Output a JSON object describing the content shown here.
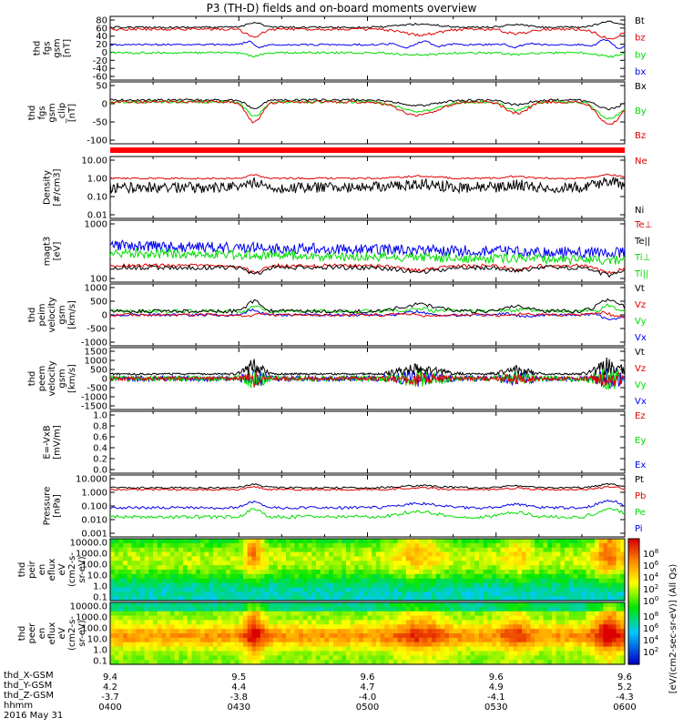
{
  "title": "P3 (TH-D) fields and on-board moments overview",
  "colors": {
    "black": "#000000",
    "red": "#e00000",
    "green": "#00dd00",
    "blue": "#0000ee"
  },
  "chart_data": {
    "type": "line",
    "title": "P3 (TH-D) fields and on-board moments overview",
    "date_label": "2016 May 31",
    "x_range": [
      "04:00",
      "06:00"
    ],
    "panels": [
      {
        "id": "fgs",
        "ylabel": [
          "thd",
          "fgs",
          "gsm",
          "[nT]"
        ],
        "yticks": [
          "80",
          "60",
          "40",
          "20",
          "0",
          "-20",
          "-40",
          "-60"
        ],
        "legend": [
          {
            "text": "Bt",
            "color": "black"
          },
          {
            "text": "bz",
            "color": "red"
          },
          {
            "text": "by",
            "color": "green"
          },
          {
            "text": "bx",
            "color": "blue"
          }
        ]
      },
      {
        "id": "fgs_clock",
        "ylabel": [
          "thd",
          "fgs",
          "gsm",
          "_clip",
          "[nT]"
        ],
        "yticks": [
          "50",
          "0",
          "-50",
          "-100"
        ],
        "legend": [
          {
            "text": "Bx",
            "color": "black"
          },
          {
            "text": "By",
            "color": "green"
          },
          {
            "text": "Bz",
            "color": "red"
          }
        ]
      },
      {
        "id": "density",
        "ylabel": [
          "Density",
          "[#/cm3]"
        ],
        "yticks": [
          "10.00",
          "1.00",
          "0.10",
          "0.01"
        ],
        "legend": [
          {
            "text": "Ne",
            "color": "red"
          },
          {
            "text": "Ni",
            "color": "black"
          }
        ]
      },
      {
        "id": "temp",
        "ylabel": [
          "magt3",
          "[eV]"
        ],
        "yticks": [
          "1000",
          "100"
        ],
        "legend": [
          {
            "text": "Te⊥",
            "color": "red"
          },
          {
            "text": "Te||",
            "color": "black"
          },
          {
            "text": "Ti⊥",
            "color": "green"
          },
          {
            "text": "Ti||",
            "color": "green"
          }
        ]
      },
      {
        "id": "ion_vel",
        "ylabel": [
          "thd",
          "peim",
          "velocity",
          "gsm",
          "[km/s]"
        ],
        "yticks": [
          "1000",
          "500",
          "0",
          "-500",
          "-1000"
        ],
        "legend": [
          {
            "text": "Vt",
            "color": "black"
          },
          {
            "text": "Vz",
            "color": "red"
          },
          {
            "text": "Vy",
            "color": "green"
          },
          {
            "text": "Vx",
            "color": "blue"
          }
        ]
      },
      {
        "id": "ele_vel",
        "ylabel": [
          "thd",
          "peem",
          "velocity",
          "gsm",
          "[km/s]"
        ],
        "yticks": [
          "1500",
          "1000",
          "500",
          "0",
          "-500",
          "-1000",
          "-1500"
        ],
        "legend": [
          {
            "text": "Vt",
            "color": "black"
          },
          {
            "text": "Vz",
            "color": "red"
          },
          {
            "text": "Vy",
            "color": "green"
          },
          {
            "text": "Vx",
            "color": "blue"
          }
        ]
      },
      {
        "id": "efield",
        "ylabel": [
          "E=-VxB",
          "[mV/m]"
        ],
        "yticks": [
          "1.0",
          "0.8",
          "0.6",
          "0.4",
          "0.2",
          "0.0"
        ],
        "legend": [
          {
            "text": "Ez",
            "color": "red"
          },
          {
            "text": "Ey",
            "color": "green"
          },
          {
            "text": "Ex",
            "color": "blue"
          }
        ]
      },
      {
        "id": "pressure",
        "ylabel": [
          "Pressure",
          "[nPa]"
        ],
        "yticks": [
          "10.000",
          "1.000",
          "0.100",
          "0.010",
          "0.001"
        ],
        "legend": [
          {
            "text": "Pt",
            "color": "black"
          },
          {
            "text": "Pb",
            "color": "red"
          },
          {
            "text": "Pe",
            "color": "green"
          },
          {
            "text": "Pi",
            "color": "blue"
          }
        ]
      },
      {
        "id": "ion_spec",
        "ylabel": [
          "thd",
          "peir",
          "en",
          "eflux",
          "eV",
          "(cm2-s-",
          "sr-eV)"
        ],
        "yticks": [
          "10000.0",
          "1000.0",
          "100.0",
          "10.0",
          "1.0",
          "0.1"
        ]
      },
      {
        "id": "ele_spec",
        "ylabel": [
          "thd",
          "peer",
          "en",
          "eflux",
          "eV",
          "(cm2-s-",
          "sr-eV)"
        ],
        "yticks": [
          "10000.0",
          "1000.0",
          "100.0",
          "10.0",
          "1.0",
          "0.1"
        ]
      }
    ],
    "colorbar": {
      "label": "[eV/(cm2-sec-sr-eV)] (All Qs)",
      "ticks_top": [
        "10^8",
        "10^6",
        "10^4",
        "10^2",
        "10^0"
      ],
      "ticks_bottom": [
        "10^8",
        "10^6",
        "10^4",
        "10^2"
      ]
    },
    "x_ticks": [
      {
        "hhmm": "0400",
        "x": "9.4",
        "y": "4.2",
        "z": "-3.7"
      },
      {
        "hhmm": "0430",
        "x": "9.5",
        "y": "4.4",
        "z": "-3.8"
      },
      {
        "hhmm": "0500",
        "x": "9.6",
        "y": "4.7",
        "z": "-4.0"
      },
      {
        "hhmm": "0530",
        "x": "9.6",
        "y": "4.9",
        "z": "-4.1"
      },
      {
        "hhmm": "0600",
        "x": "9.6",
        "y": "5.2",
        "z": "-4.3"
      }
    ],
    "x_labels": [
      "thd_X-GSM",
      "thd_Y-GSM",
      "thd_Z-GSM",
      "hhmm"
    ]
  }
}
